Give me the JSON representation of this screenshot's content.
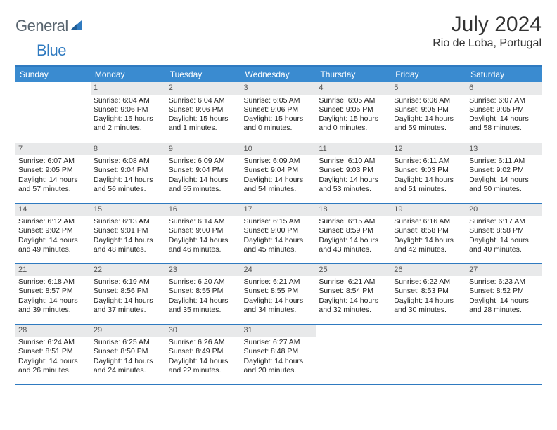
{
  "brand": {
    "part1": "General",
    "part2": "Blue"
  },
  "title": "July 2024",
  "location": "Rio de Loba, Portugal",
  "colors": {
    "header_bg": "#3a8bd0",
    "header_text": "#ffffff",
    "rule": "#2f7ac0",
    "daynum_bg": "#e8e9ea",
    "daynum_text": "#555555",
    "body_text": "#222222",
    "logo_gray": "#5a6670",
    "logo_blue": "#2f7ac0"
  },
  "weekdays": [
    "Sunday",
    "Monday",
    "Tuesday",
    "Wednesday",
    "Thursday",
    "Friday",
    "Saturday"
  ],
  "weeks": [
    [
      {
        "n": "",
        "l1": "",
        "l2": "",
        "l3": "",
        "l4": ""
      },
      {
        "n": "1",
        "l1": "Sunrise: 6:04 AM",
        "l2": "Sunset: 9:06 PM",
        "l3": "Daylight: 15 hours",
        "l4": "and 2 minutes."
      },
      {
        "n": "2",
        "l1": "Sunrise: 6:04 AM",
        "l2": "Sunset: 9:06 PM",
        "l3": "Daylight: 15 hours",
        "l4": "and 1 minutes."
      },
      {
        "n": "3",
        "l1": "Sunrise: 6:05 AM",
        "l2": "Sunset: 9:06 PM",
        "l3": "Daylight: 15 hours",
        "l4": "and 0 minutes."
      },
      {
        "n": "4",
        "l1": "Sunrise: 6:05 AM",
        "l2": "Sunset: 9:05 PM",
        "l3": "Daylight: 15 hours",
        "l4": "and 0 minutes."
      },
      {
        "n": "5",
        "l1": "Sunrise: 6:06 AM",
        "l2": "Sunset: 9:05 PM",
        "l3": "Daylight: 14 hours",
        "l4": "and 59 minutes."
      },
      {
        "n": "6",
        "l1": "Sunrise: 6:07 AM",
        "l2": "Sunset: 9:05 PM",
        "l3": "Daylight: 14 hours",
        "l4": "and 58 minutes."
      }
    ],
    [
      {
        "n": "7",
        "l1": "Sunrise: 6:07 AM",
        "l2": "Sunset: 9:05 PM",
        "l3": "Daylight: 14 hours",
        "l4": "and 57 minutes."
      },
      {
        "n": "8",
        "l1": "Sunrise: 6:08 AM",
        "l2": "Sunset: 9:04 PM",
        "l3": "Daylight: 14 hours",
        "l4": "and 56 minutes."
      },
      {
        "n": "9",
        "l1": "Sunrise: 6:09 AM",
        "l2": "Sunset: 9:04 PM",
        "l3": "Daylight: 14 hours",
        "l4": "and 55 minutes."
      },
      {
        "n": "10",
        "l1": "Sunrise: 6:09 AM",
        "l2": "Sunset: 9:04 PM",
        "l3": "Daylight: 14 hours",
        "l4": "and 54 minutes."
      },
      {
        "n": "11",
        "l1": "Sunrise: 6:10 AM",
        "l2": "Sunset: 9:03 PM",
        "l3": "Daylight: 14 hours",
        "l4": "and 53 minutes."
      },
      {
        "n": "12",
        "l1": "Sunrise: 6:11 AM",
        "l2": "Sunset: 9:03 PM",
        "l3": "Daylight: 14 hours",
        "l4": "and 51 minutes."
      },
      {
        "n": "13",
        "l1": "Sunrise: 6:11 AM",
        "l2": "Sunset: 9:02 PM",
        "l3": "Daylight: 14 hours",
        "l4": "and 50 minutes."
      }
    ],
    [
      {
        "n": "14",
        "l1": "Sunrise: 6:12 AM",
        "l2": "Sunset: 9:02 PM",
        "l3": "Daylight: 14 hours",
        "l4": "and 49 minutes."
      },
      {
        "n": "15",
        "l1": "Sunrise: 6:13 AM",
        "l2": "Sunset: 9:01 PM",
        "l3": "Daylight: 14 hours",
        "l4": "and 48 minutes."
      },
      {
        "n": "16",
        "l1": "Sunrise: 6:14 AM",
        "l2": "Sunset: 9:00 PM",
        "l3": "Daylight: 14 hours",
        "l4": "and 46 minutes."
      },
      {
        "n": "17",
        "l1": "Sunrise: 6:15 AM",
        "l2": "Sunset: 9:00 PM",
        "l3": "Daylight: 14 hours",
        "l4": "and 45 minutes."
      },
      {
        "n": "18",
        "l1": "Sunrise: 6:15 AM",
        "l2": "Sunset: 8:59 PM",
        "l3": "Daylight: 14 hours",
        "l4": "and 43 minutes."
      },
      {
        "n": "19",
        "l1": "Sunrise: 6:16 AM",
        "l2": "Sunset: 8:58 PM",
        "l3": "Daylight: 14 hours",
        "l4": "and 42 minutes."
      },
      {
        "n": "20",
        "l1": "Sunrise: 6:17 AM",
        "l2": "Sunset: 8:58 PM",
        "l3": "Daylight: 14 hours",
        "l4": "and 40 minutes."
      }
    ],
    [
      {
        "n": "21",
        "l1": "Sunrise: 6:18 AM",
        "l2": "Sunset: 8:57 PM",
        "l3": "Daylight: 14 hours",
        "l4": "and 39 minutes."
      },
      {
        "n": "22",
        "l1": "Sunrise: 6:19 AM",
        "l2": "Sunset: 8:56 PM",
        "l3": "Daylight: 14 hours",
        "l4": "and 37 minutes."
      },
      {
        "n": "23",
        "l1": "Sunrise: 6:20 AM",
        "l2": "Sunset: 8:55 PM",
        "l3": "Daylight: 14 hours",
        "l4": "and 35 minutes."
      },
      {
        "n": "24",
        "l1": "Sunrise: 6:21 AM",
        "l2": "Sunset: 8:55 PM",
        "l3": "Daylight: 14 hours",
        "l4": "and 34 minutes."
      },
      {
        "n": "25",
        "l1": "Sunrise: 6:21 AM",
        "l2": "Sunset: 8:54 PM",
        "l3": "Daylight: 14 hours",
        "l4": "and 32 minutes."
      },
      {
        "n": "26",
        "l1": "Sunrise: 6:22 AM",
        "l2": "Sunset: 8:53 PM",
        "l3": "Daylight: 14 hours",
        "l4": "and 30 minutes."
      },
      {
        "n": "27",
        "l1": "Sunrise: 6:23 AM",
        "l2": "Sunset: 8:52 PM",
        "l3": "Daylight: 14 hours",
        "l4": "and 28 minutes."
      }
    ],
    [
      {
        "n": "28",
        "l1": "Sunrise: 6:24 AM",
        "l2": "Sunset: 8:51 PM",
        "l3": "Daylight: 14 hours",
        "l4": "and 26 minutes."
      },
      {
        "n": "29",
        "l1": "Sunrise: 6:25 AM",
        "l2": "Sunset: 8:50 PM",
        "l3": "Daylight: 14 hours",
        "l4": "and 24 minutes."
      },
      {
        "n": "30",
        "l1": "Sunrise: 6:26 AM",
        "l2": "Sunset: 8:49 PM",
        "l3": "Daylight: 14 hours",
        "l4": "and 22 minutes."
      },
      {
        "n": "31",
        "l1": "Sunrise: 6:27 AM",
        "l2": "Sunset: 8:48 PM",
        "l3": "Daylight: 14 hours",
        "l4": "and 20 minutes."
      },
      {
        "n": "",
        "l1": "",
        "l2": "",
        "l3": "",
        "l4": ""
      },
      {
        "n": "",
        "l1": "",
        "l2": "",
        "l3": "",
        "l4": ""
      },
      {
        "n": "",
        "l1": "",
        "l2": "",
        "l3": "",
        "l4": ""
      }
    ]
  ]
}
